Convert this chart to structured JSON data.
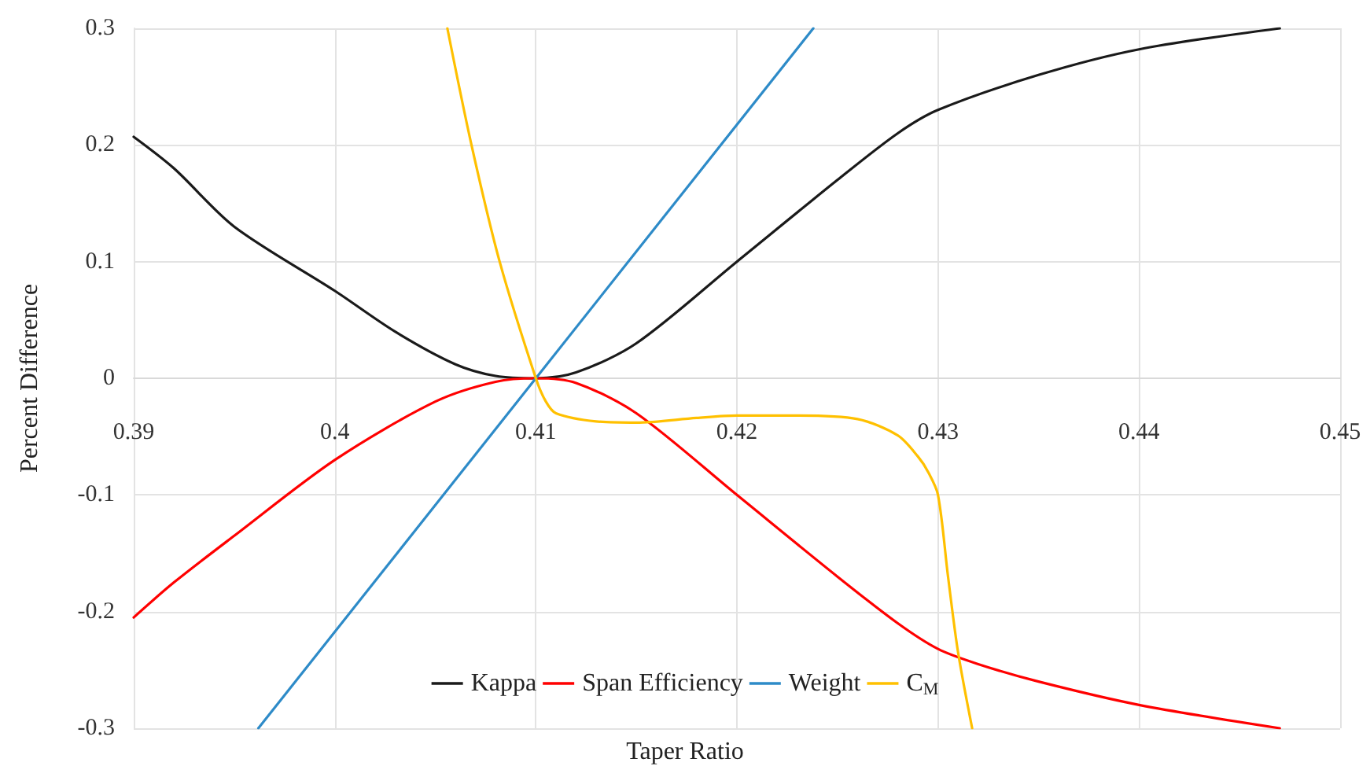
{
  "chart_data": {
    "type": "line",
    "xlabel": "Taper Ratio",
    "ylabel": "Percent Difference",
    "xlim": [
      0.39,
      0.45
    ],
    "xticks": [
      0.39,
      0.4,
      0.41,
      0.42,
      0.43,
      0.44,
      0.45
    ],
    "ylim": [
      -0.3,
      0.3
    ],
    "yticks": [
      -0.3,
      -0.2,
      -0.1,
      0,
      0.1,
      0.2,
      0.3
    ],
    "grid": true,
    "legend": "bottom",
    "marker": "none",
    "line_style": "solid",
    "series": [
      {
        "name": "Kappa",
        "color": "#1a1a1a",
        "x": [
          0.39,
          0.392,
          0.395,
          0.4,
          0.403,
          0.406,
          0.408,
          0.41,
          0.412,
          0.415,
          0.42,
          0.425,
          0.428,
          0.43,
          0.435,
          0.44,
          0.447
        ],
        "values": [
          0.207,
          0.18,
          0.13,
          0.075,
          0.04,
          0.012,
          0.002,
          0,
          0.005,
          0.03,
          0.1,
          0.17,
          0.21,
          0.23,
          0.26,
          0.282,
          0.3
        ]
      },
      {
        "name": "Span Efficiency",
        "color": "#ff0000",
        "x": [
          0.39,
          0.392,
          0.395,
          0.4,
          0.405,
          0.408,
          0.41,
          0.412,
          0.415,
          0.42,
          0.425,
          0.428,
          0.43,
          0.432,
          0.435,
          0.44,
          0.447
        ],
        "values": [
          -0.205,
          -0.175,
          -0.135,
          -0.07,
          -0.02,
          -0.003,
          0,
          -0.004,
          -0.03,
          -0.1,
          -0.17,
          -0.21,
          -0.232,
          -0.245,
          -0.26,
          -0.28,
          -0.3
        ]
      },
      {
        "name": "Weight",
        "color": "#2e8bc8",
        "x": [
          0.3962,
          0.41,
          0.4238
        ],
        "values": [
          -0.3,
          0,
          0.3
        ]
      },
      {
        "name": "C$_{M}$",
        "color": "#ffc000",
        "x": [
          0.4056,
          0.4068,
          0.4082,
          0.41,
          0.4105,
          0.411,
          0.413,
          0.415,
          0.418,
          0.42,
          0.423,
          0.426,
          0.428,
          0.429,
          0.4295,
          0.43,
          0.4305,
          0.431,
          0.4317
        ],
        "values": [
          0.3,
          0.2,
          0.1,
          0,
          -0.02,
          -0.03,
          -0.037,
          -0.038,
          -0.034,
          -0.032,
          -0.032,
          -0.035,
          -0.049,
          -0.067,
          -0.08,
          -0.1,
          -0.17,
          -0.235,
          -0.3
        ]
      }
    ]
  }
}
